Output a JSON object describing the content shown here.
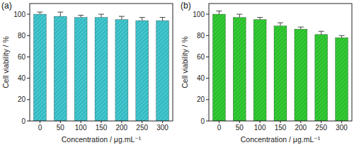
{
  "chart_data": [
    {
      "type": "bar",
      "title": "(a)",
      "x_label": "Concentration / μg.mL⁻¹",
      "y_label": "Cell viability / %",
      "categories": [
        "0",
        "50",
        "100",
        "150",
        "200",
        "250",
        "300"
      ],
      "values": [
        100,
        98,
        97,
        97,
        95,
        94,
        94
      ],
      "errors": [
        2,
        4,
        2,
        3,
        3,
        3,
        3
      ],
      "color": "#40c8d0",
      "ylim": [
        0,
        110
      ],
      "yticks": [
        0,
        20,
        40,
        60,
        80,
        100
      ],
      "grid": false
    },
    {
      "type": "bar",
      "title": "(b)",
      "x_label": "Concentration / μg.mL⁻¹",
      "y_label": "Cell viability / %",
      "categories": [
        "0",
        "50",
        "100",
        "150",
        "200",
        "250",
        "300"
      ],
      "values": [
        100,
        97,
        95,
        89,
        86,
        81,
        78
      ],
      "errors": [
        3,
        3,
        2,
        3,
        2,
        3,
        2
      ],
      "color": "#33cc33",
      "ylim": [
        0,
        110
      ],
      "yticks": [
        0,
        20,
        40,
        60,
        80,
        100
      ],
      "grid": false
    }
  ]
}
